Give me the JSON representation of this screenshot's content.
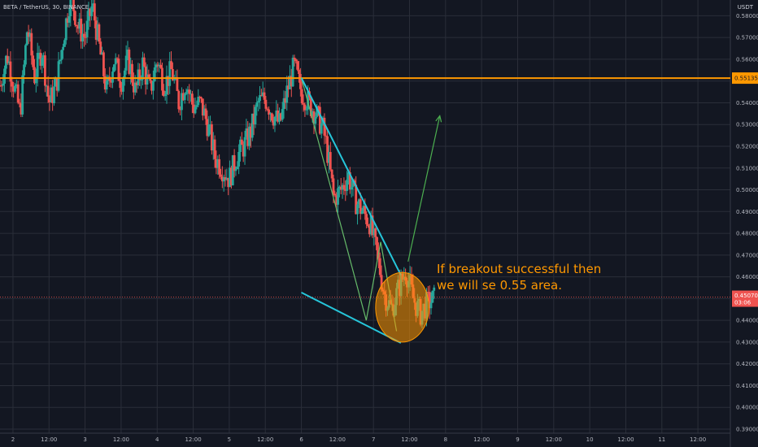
{
  "header": {
    "symbol": "BETA / TetherUS, 30, BINANCE",
    "currency": "USDT"
  },
  "annotation": {
    "line1": "If breakout successful then",
    "line2": "we will se 0.55 area."
  },
  "colors": {
    "background": "#131722",
    "grid": "#2a2e39",
    "up": "#26a69a",
    "down": "#ef5350",
    "resistance": "#ff9800",
    "trendline": "#26c6da",
    "wedge": "#66bb6a",
    "projection": "#4caf50",
    "text": "#b2b5be"
  },
  "chart_data": {
    "type": "candlestick",
    "title": "BETA / TetherUS, 30, BINANCE",
    "ylabel": "USDT",
    "ylim": [
      0.39,
      0.585
    ],
    "y_ticks": [
      "0.58000",
      "0.57000",
      "0.56000",
      "0.55000",
      "0.54000",
      "0.53000",
      "0.52000",
      "0.51000",
      "0.50000",
      "0.49000",
      "0.48000",
      "0.47000",
      "0.46000",
      "0.45000",
      "0.44000",
      "0.43000",
      "0.42000",
      "0.41000",
      "0.40000",
      "0.39000"
    ],
    "x_ticks": [
      "2",
      "12:00",
      "3",
      "12:00",
      "4",
      "12:00",
      "5",
      "12:00",
      "6",
      "12:00",
      "7",
      "12:00",
      "8",
      "12:00",
      "9",
      "12:00",
      "10",
      "12:00",
      "11",
      "12:00"
    ],
    "x_tick_times": [
      1,
      1.5,
      2,
      2.5,
      3,
      3.5,
      4,
      4.5,
      5,
      5.5,
      6,
      6.5,
      7,
      7.5,
      8,
      8.5,
      9,
      9.5,
      10,
      10.5
    ],
    "x_axis_unit": "day of month",
    "xlim": [
      0.82,
      10.95
    ],
    "price_path": [
      [
        0.82,
        0.548
      ],
      [
        0.92,
        0.562
      ],
      [
        1.0,
        0.55
      ],
      [
        1.1,
        0.535
      ],
      [
        1.2,
        0.575
      ],
      [
        1.3,
        0.552
      ],
      [
        1.4,
        0.565
      ],
      [
        1.5,
        0.54
      ],
      [
        1.6,
        0.548
      ],
      [
        1.7,
        0.57
      ],
      [
        1.8,
        0.59
      ],
      [
        1.9,
        0.575
      ],
      [
        2.0,
        0.57
      ],
      [
        2.1,
        0.585
      ],
      [
        2.2,
        0.565
      ],
      [
        2.3,
        0.545
      ],
      [
        2.4,
        0.56
      ],
      [
        2.5,
        0.55
      ],
      [
        2.6,
        0.56
      ],
      [
        2.7,
        0.545
      ],
      [
        2.8,
        0.558
      ],
      [
        2.9,
        0.545
      ],
      [
        3.0,
        0.56
      ],
      [
        3.1,
        0.548
      ],
      [
        3.2,
        0.555
      ],
      [
        3.3,
        0.54
      ],
      [
        3.4,
        0.55
      ],
      [
        3.5,
        0.538
      ],
      [
        3.6,
        0.54
      ],
      [
        3.7,
        0.53
      ],
      [
        3.8,
        0.515
      ],
      [
        3.9,
        0.51
      ],
      [
        4.0,
        0.505
      ],
      [
        4.1,
        0.515
      ],
      [
        4.2,
        0.52
      ],
      [
        4.3,
        0.527
      ],
      [
        4.4,
        0.54
      ],
      [
        4.5,
        0.542
      ],
      [
        4.6,
        0.535
      ],
      [
        4.7,
        0.53
      ],
      [
        4.8,
        0.545
      ],
      [
        4.9,
        0.557
      ],
      [
        5.0,
        0.545
      ],
      [
        5.1,
        0.54
      ],
      [
        5.2,
        0.535
      ],
      [
        5.3,
        0.528
      ],
      [
        5.35,
        0.52
      ],
      [
        5.45,
        0.496
      ],
      [
        5.55,
        0.5
      ],
      [
        5.65,
        0.507
      ],
      [
        5.75,
        0.495
      ],
      [
        5.85,
        0.49
      ],
      [
        5.95,
        0.485
      ],
      [
        6.05,
        0.47
      ],
      [
        6.15,
        0.452
      ],
      [
        6.25,
        0.445
      ],
      [
        6.35,
        0.455
      ],
      [
        6.45,
        0.463
      ],
      [
        6.55,
        0.45
      ],
      [
        6.65,
        0.443
      ],
      [
        6.75,
        0.448
      ],
      [
        6.85,
        0.45
      ]
    ],
    "overlays": {
      "resistance_level": 0.55135,
      "resistance_label": "0.55135",
      "current_price": 0.4507,
      "current_price_label": "0.45070",
      "countdown_label": "03:06",
      "upper_trendline": [
        [
          5.0,
          0.5515
        ],
        [
          6.38,
          0.4608
        ]
      ],
      "lower_trendline": [
        [
          5.0,
          0.4528
        ],
        [
          6.38,
          0.4296
        ]
      ],
      "wedge": [
        [
          5.0,
          0.5515
        ],
        [
          5.9,
          0.44
        ],
        [
          6.1,
          0.476
        ],
        [
          6.32,
          0.435
        ]
      ],
      "projection_arrow": [
        [
          6.48,
          0.467
        ],
        [
          6.92,
          0.534
        ]
      ],
      "highlight_circle": {
        "center": [
          6.4,
          0.446
        ],
        "radius_x_days": 0.37,
        "radius_y_price": 0.016
      }
    }
  }
}
